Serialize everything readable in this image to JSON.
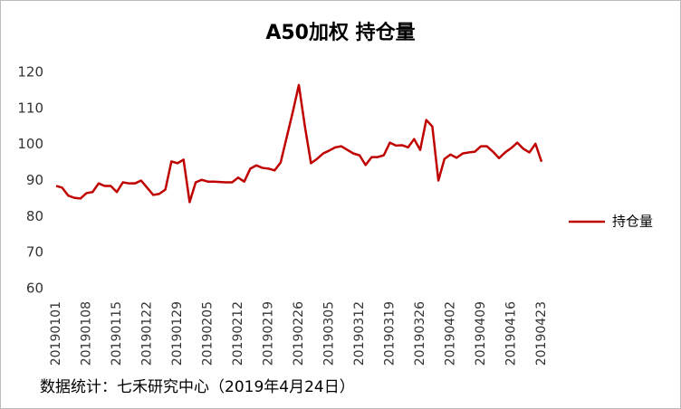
{
  "chart_data": {
    "type": "line",
    "title": "A50加权  持仓量",
    "categories": [
      "20190101",
      null,
      null,
      null,
      null,
      "20190108",
      null,
      null,
      null,
      null,
      "20190115",
      null,
      null,
      null,
      null,
      "20190122",
      null,
      null,
      null,
      null,
      "20190129",
      null,
      null,
      null,
      null,
      "20190205",
      null,
      null,
      null,
      null,
      "20190212",
      null,
      null,
      null,
      null,
      "20190219",
      null,
      null,
      null,
      null,
      "20190226",
      null,
      null,
      null,
      null,
      "20190305",
      null,
      null,
      null,
      null,
      "20190312",
      null,
      null,
      null,
      null,
      "20190319",
      null,
      null,
      null,
      null,
      "20190326",
      null,
      null,
      null,
      null,
      "20190402",
      null,
      null,
      null,
      null,
      "20190409",
      null,
      null,
      null,
      null,
      "20190416",
      null,
      null,
      null,
      null,
      "20190423"
    ],
    "series": [
      {
        "name": "持仓量",
        "color": "#c00000",
        "values": [
          88.5,
          88,
          85.8,
          85.2,
          85,
          86.5,
          86.8,
          89.2,
          88.5,
          88.5,
          86.8,
          89.5,
          89.2,
          89.2,
          90,
          88,
          86,
          86.3,
          87.5,
          95.3,
          94.8,
          95.8,
          84,
          89.5,
          90.2,
          89.7,
          89.7,
          89.6,
          89.5,
          89.5,
          90.8,
          89.7,
          93.3,
          94.2,
          93.5,
          93.3,
          92.8,
          95,
          102,
          109,
          116.5,
          105,
          94.8,
          96,
          97.5,
          98.3,
          99.2,
          99.5,
          98.5,
          97.5,
          97,
          94.3,
          96.5,
          96.5,
          97,
          100.5,
          99.7,
          99.8,
          99.2,
          101.5,
          98.5,
          106.8,
          105,
          90,
          96,
          97.2,
          96.3,
          97.5,
          97.8,
          98,
          99.5,
          99.5,
          98,
          96.2,
          97.8,
          99,
          100.5,
          98.8,
          97.8,
          100.2,
          95.2
        ]
      }
    ],
    "ylim": [
      60,
      120
    ],
    "yticks": [
      60,
      70,
      80,
      90,
      100,
      110,
      120
    ],
    "grid": false,
    "legend": "right",
    "source": "数据统计：七禾研究中心（2019年4月24日）"
  }
}
